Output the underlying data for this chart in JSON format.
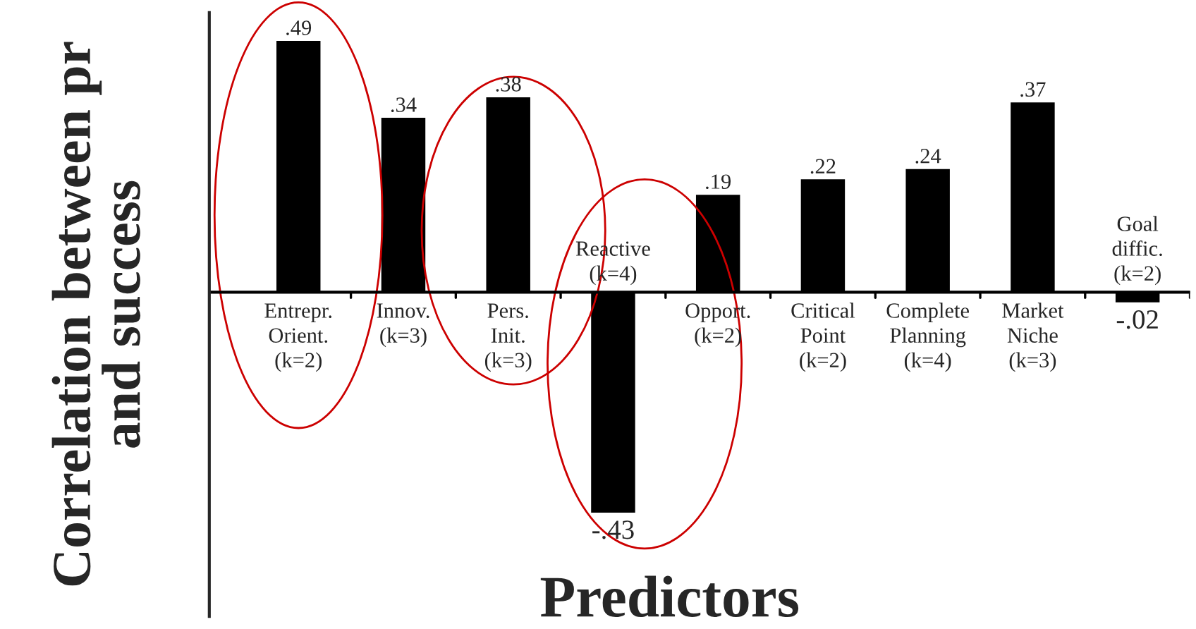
{
  "chart_data": {
    "type": "bar",
    "categories": [
      "Entrepr.\nOrient.\n(k=2)",
      "Innov.\n(k=3)",
      "Pers.\nInit.\n(k=3)",
      "Reactive\n(k=4)",
      "Opport.\n(k=2)",
      "Critical\nPoint\n(k=2)",
      "Complete\nPlanning\n(k=4)",
      "Market\nNiche\n(k=3)",
      "Goal\ndiffic.\n(k=2)"
    ],
    "values": [
      0.49,
      0.34,
      0.38,
      -0.43,
      0.19,
      0.22,
      0.24,
      0.37,
      -0.02
    ],
    "value_labels": [
      ".49",
      ".34",
      ".38",
      "-.43",
      ".19",
      ".22",
      ".24",
      ".37",
      "-.02"
    ],
    "color": "#000000",
    "xlabel": "Predictors",
    "ylabel": "Correlation between pr\nand success",
    "legend": false
  }
}
